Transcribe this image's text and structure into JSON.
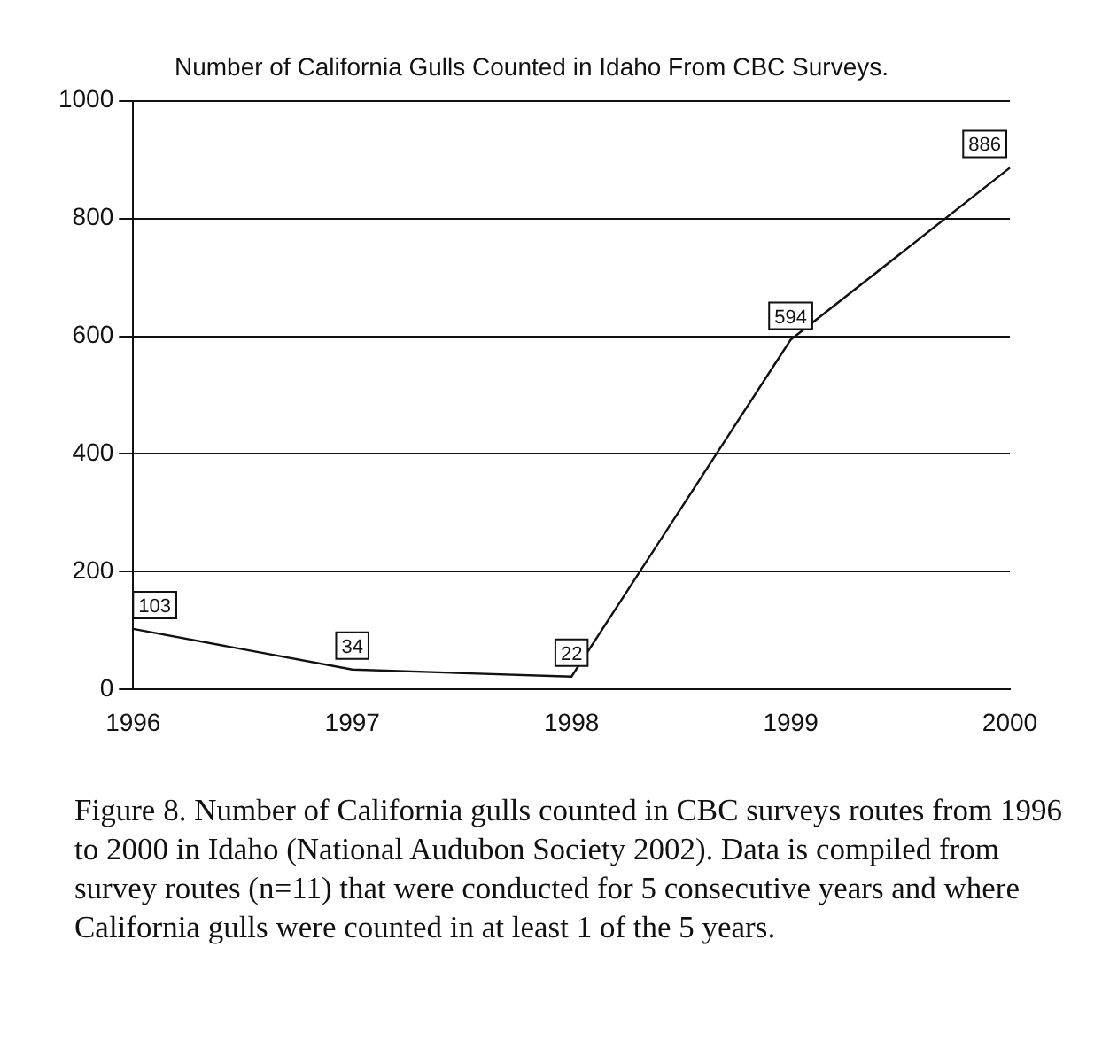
{
  "chart_data": {
    "type": "line",
    "title": "Number of California Gulls Counted in Idaho From CBC Surveys.",
    "categories": [
      "1996",
      "1997",
      "1998",
      "1999",
      "2000"
    ],
    "series": [
      {
        "color": "#111111",
        "values": [
          103,
          34,
          22,
          594,
          886
        ]
      }
    ],
    "ylim": [
      0,
      1000
    ],
    "yticks": [
      0,
      200,
      400,
      600,
      800,
      1000
    ],
    "grid": "y",
    "legend": false,
    "marker": "none",
    "line_style": "solid",
    "data_labels": true,
    "annotations": [
      "Figure 8.  Number of California gulls counted in CBC surveys routes from 1996 to 2000 in Idaho (National Audubon Society 2002). Data is compiled from survey routes (n=11) that were conducted for 5 consecutive years and where California gulls were counted in at least 1 of the 5 years."
    ]
  }
}
